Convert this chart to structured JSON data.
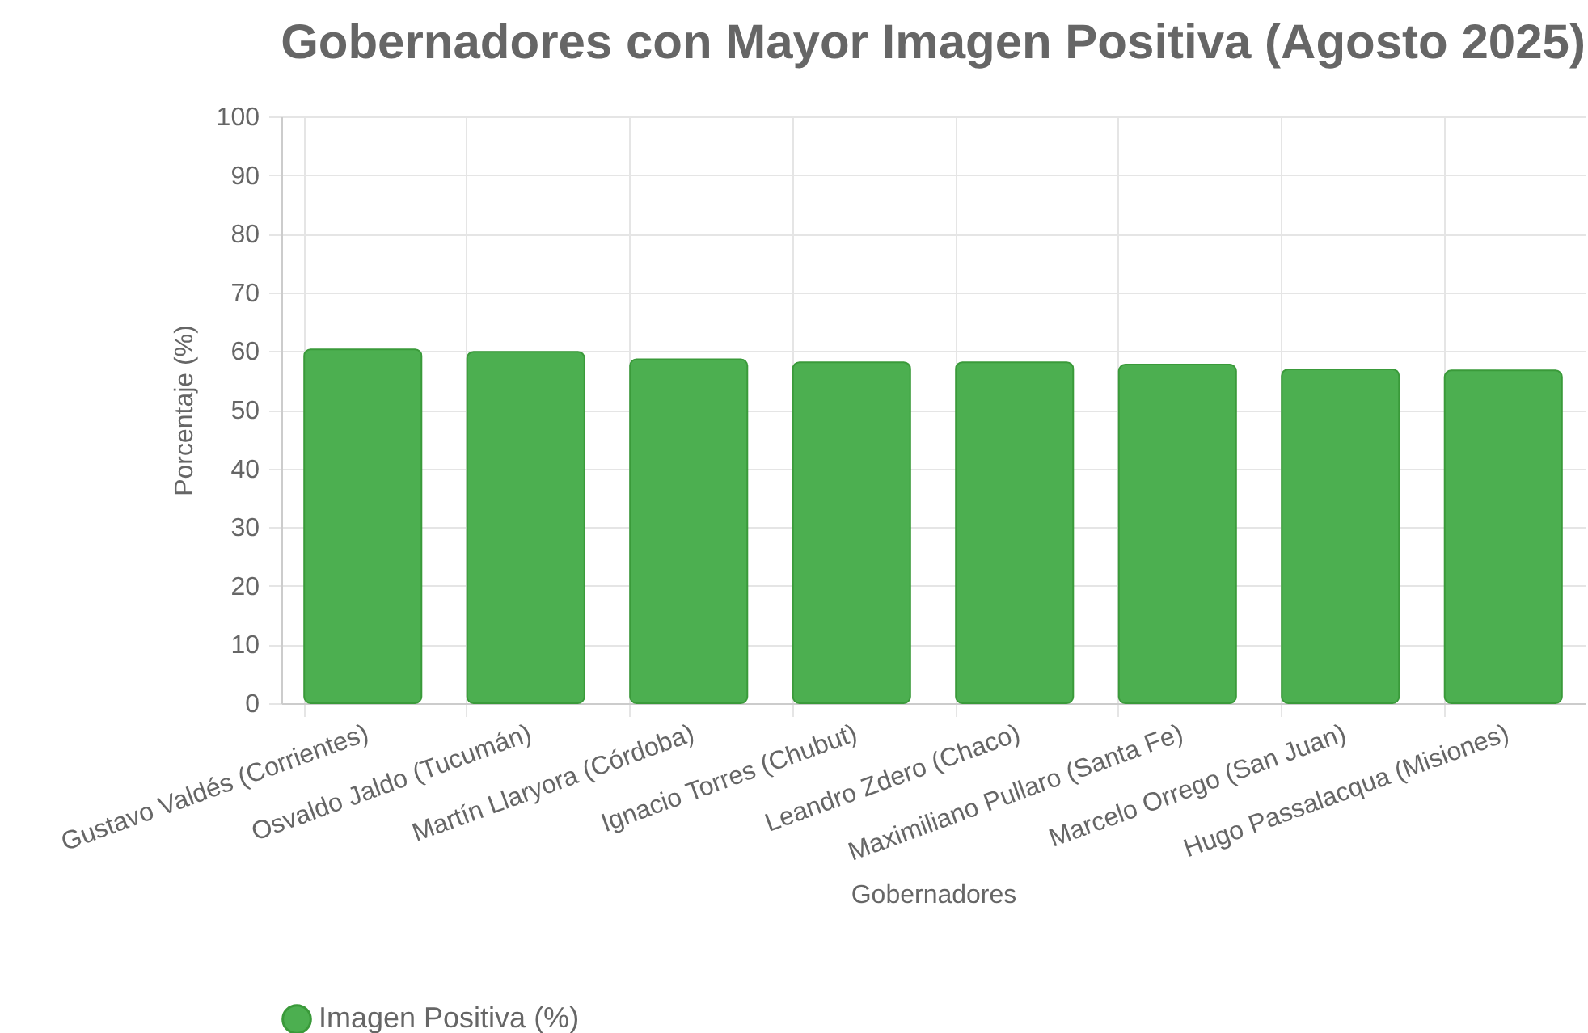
{
  "chart_data": {
    "type": "bar",
    "title": "Gobernadores con Mayor Imagen Positiva (Agosto 2025)",
    "xlabel": "Gobernadores",
    "ylabel": "Porcentaje (%)",
    "categories": [
      "Gustavo Valdés (Corrientes)",
      "Osvaldo Jaldo (Tucumán)",
      "Martín Llaryora (Córdoba)",
      "Ignacio Torres (Chubut)",
      "Leandro Zdero (Chaco)",
      "Maximiliano Pullaro (Santa Fe)",
      "Marcelo Orrego (San Juan)",
      "Hugo Passalacqua (Misiones)"
    ],
    "series": [
      {
        "name": "Imagen Positiva (%)",
        "color": "#4caf50",
        "values": [
          60.3,
          59.9,
          58.6,
          58.1,
          58.1,
          57.7,
          56.9,
          56.7
        ]
      }
    ],
    "ylim": [
      0,
      100
    ],
    "yticks": [
      0,
      10,
      20,
      30,
      40,
      50,
      60,
      70,
      80,
      90,
      100
    ],
    "grid": true,
    "legend": "bottom"
  }
}
